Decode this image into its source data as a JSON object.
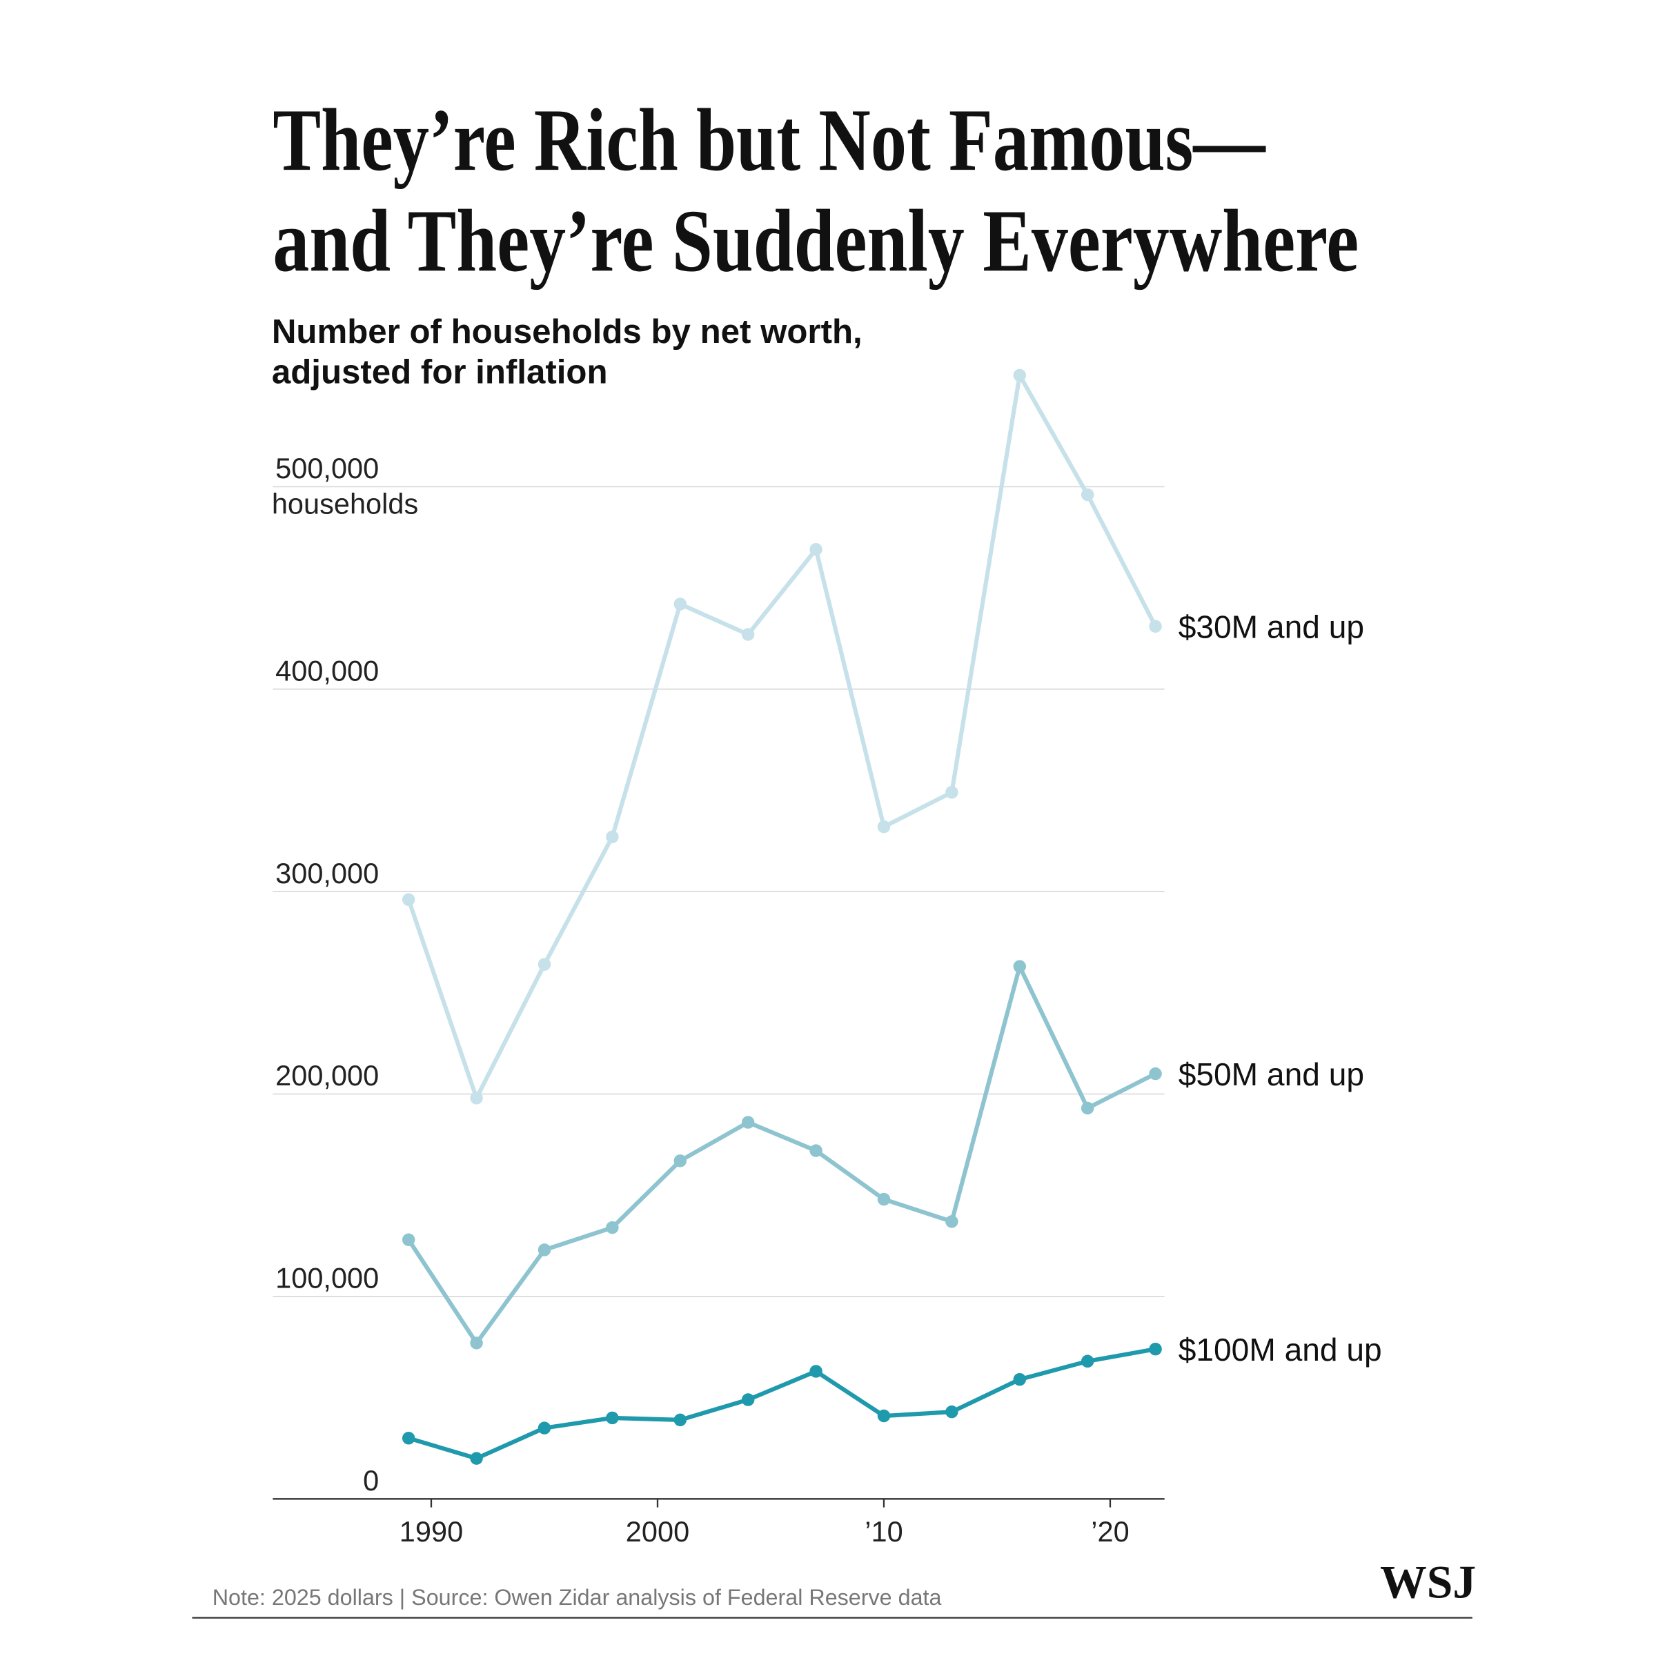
{
  "chart_data": {
    "type": "line",
    "title": [
      "They’re Rich but Not Famous—",
      "and They’re Suddenly Everywhere"
    ],
    "subtitle": [
      "Number of households by net worth,",
      "adjusted for inflation"
    ],
    "y_unit": "households",
    "x": [
      1989,
      1992,
      1995,
      1998,
      2001,
      2004,
      2007,
      2010,
      2013,
      2016,
      2019,
      2022
    ],
    "series": [
      {
        "name": "$30M and up",
        "color": "#c6e1e9",
        "values": [
          296000,
          198000,
          264000,
          327000,
          442000,
          427000,
          469000,
          332000,
          349000,
          555000,
          496000,
          431000
        ]
      },
      {
        "name": "$50M and up",
        "color": "#8ec4cf",
        "values": [
          128000,
          77000,
          123000,
          134000,
          167000,
          186000,
          172000,
          148000,
          137000,
          263000,
          193000,
          210000
        ]
      },
      {
        "name": "$100M and up",
        "color": "#1f99ac",
        "values": [
          30000,
          20000,
          35000,
          40000,
          39000,
          49000,
          63000,
          41000,
          43000,
          59000,
          68000,
          74000
        ]
      }
    ],
    "xlim": [
      1983,
      2022.4
    ],
    "xticks": [
      1990,
      2000,
      {
        "value": 2010,
        "label": "’10"
      },
      {
        "value": 2020,
        "label": "’20"
      }
    ],
    "ylim": [
      0,
      560000
    ],
    "yticks": [
      0,
      {
        "value": 100000,
        "label": "100,000"
      },
      {
        "value": 200000,
        "label": "200,000"
      },
      {
        "value": 300000,
        "label": "300,000"
      },
      {
        "value": 400000,
        "label": "400,000"
      },
      {
        "value": 500000,
        "label": "500,000"
      }
    ],
    "grid": true,
    "note": "Note: 2025 dollars | Source: Owen Zidar analysis of Federal Reserve data",
    "publisher": "WSJ"
  }
}
